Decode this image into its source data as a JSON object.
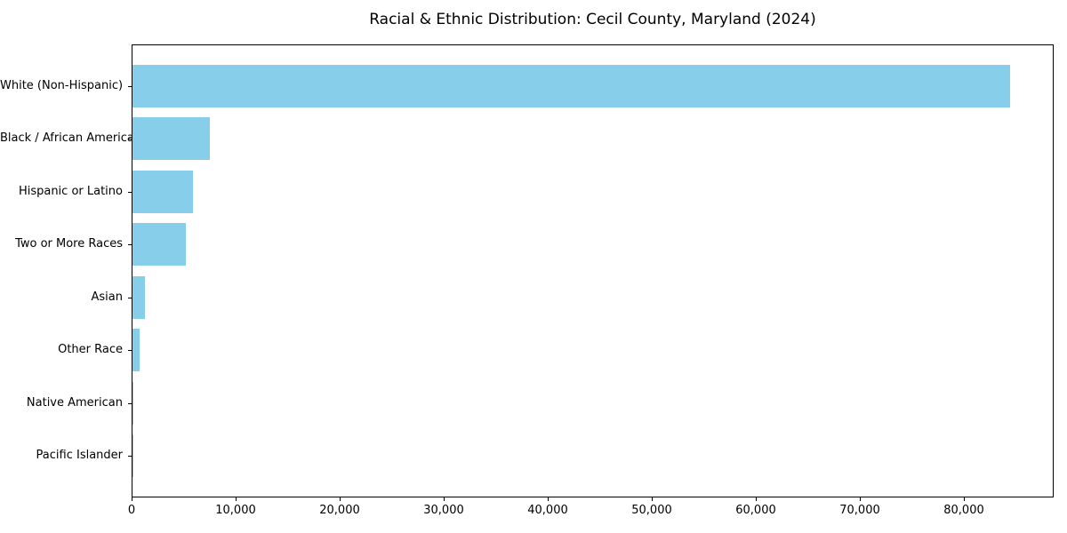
{
  "figure": {
    "title": "Racial & Ethnic Distribution: Cecil County, Maryland (2024)"
  },
  "chart_data": {
    "type": "bar",
    "orientation": "horizontal",
    "title": "Racial & Ethnic Distribution: Cecil County, Maryland (2024)",
    "categories": [
      "White (Non-Hispanic)",
      "Black / African American",
      "Hispanic or Latino",
      "Two or More Races",
      "Asian",
      "Other Race",
      "Native American",
      "Pacific Islander"
    ],
    "values": [
      84300,
      7450,
      5850,
      5100,
      1230,
      720,
      60,
      20
    ],
    "xlabel": "",
    "ylabel": "",
    "xlim": [
      0,
      88500
    ],
    "xticks": [
      0,
      10000,
      20000,
      30000,
      40000,
      50000,
      60000,
      70000,
      80000
    ],
    "xtick_labels": [
      "0",
      "10,000",
      "20,000",
      "30,000",
      "40,000",
      "50,000",
      "60,000",
      "70,000",
      "80,000"
    ],
    "bar_color": "#87CEEB",
    "grid": false,
    "legend": null,
    "category_order": "descending, largest at top"
  }
}
